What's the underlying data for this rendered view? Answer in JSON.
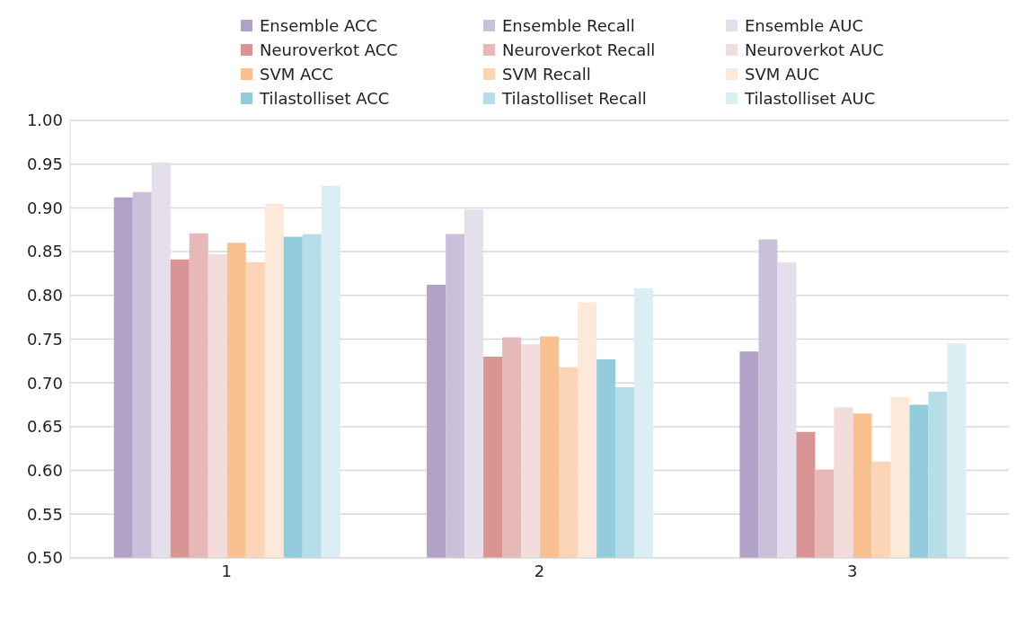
{
  "chart_data": {
    "type": "bar",
    "categories": [
      "1",
      "2",
      "3"
    ],
    "series": [
      {
        "name": "Ensemble ACC",
        "color": "#b1a1c7",
        "values": [
          0.912,
          0.812,
          0.736
        ]
      },
      {
        "name": "Ensemble Recall",
        "color": "#cbc0da",
        "values": [
          0.918,
          0.87,
          0.864
        ]
      },
      {
        "name": "Ensemble AUC",
        "color": "#e4dfeb",
        "values": [
          0.952,
          0.898,
          0.838
        ]
      },
      {
        "name": "Neuroverkot ACC",
        "color": "#d99593",
        "values": [
          0.841,
          0.73,
          0.644
        ]
      },
      {
        "name": "Neuroverkot Recall",
        "color": "#e6b8b7",
        "values": [
          0.871,
          0.752,
          0.601
        ]
      },
      {
        "name": "Neuroverkot AUC",
        "color": "#f1dbdb",
        "values": [
          0.847,
          0.744,
          0.672
        ]
      },
      {
        "name": "SVM ACC",
        "color": "#f9c090",
        "values": [
          0.86,
          0.753,
          0.665
        ]
      },
      {
        "name": "SVM Recall",
        "color": "#fbd5b5",
        "values": [
          0.838,
          0.718,
          0.61
        ]
      },
      {
        "name": "SVM AUC",
        "color": "#fde9d9",
        "values": [
          0.905,
          0.792,
          0.684
        ]
      },
      {
        "name": "Tilastolliset ACC",
        "color": "#93cddd",
        "values": [
          0.867,
          0.727,
          0.675
        ]
      },
      {
        "name": "Tilastolliset Recall",
        "color": "#b7dee8",
        "values": [
          0.87,
          0.695,
          0.69
        ]
      },
      {
        "name": "Tilastolliset AUC",
        "color": "#dbeef4",
        "values": [
          0.925,
          0.808,
          0.745
        ]
      }
    ],
    "ylim": [
      0.5,
      1.0
    ],
    "yticks": [
      {
        "value": 0.5,
        "label": "0.50"
      },
      {
        "value": 0.55,
        "label": "0.55"
      },
      {
        "value": 0.6,
        "label": "0.60"
      },
      {
        "value": 0.65,
        "label": "0.65"
      },
      {
        "value": 0.7,
        "label": "0.70"
      },
      {
        "value": 0.75,
        "label": "0.75"
      },
      {
        "value": 0.8,
        "label": "0.80"
      },
      {
        "value": 0.85,
        "label": "0.85"
      },
      {
        "value": 0.9,
        "label": "0.90"
      },
      {
        "value": 0.95,
        "label": "0.95"
      },
      {
        "value": 1.0,
        "label": "1.00"
      }
    ],
    "grid": "y",
    "legend": "top"
  }
}
